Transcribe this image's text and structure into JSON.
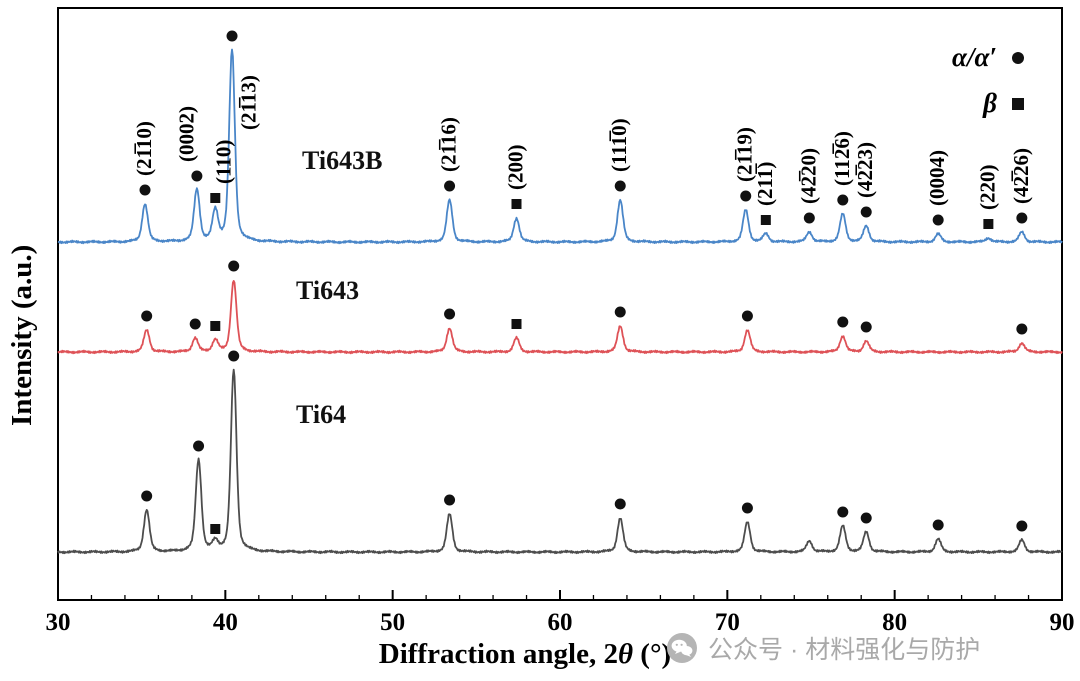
{
  "watermark": {
    "text": "公众号 · 材料强化与防护"
  },
  "chart_data": {
    "type": "line",
    "title": "",
    "xlabel": {
      "prefix": "Diffraction angle, 2",
      "theta": "θ",
      "suffix": " (°)"
    },
    "ylabel": "Intensity (a.u.)",
    "xlim": [
      30,
      90
    ],
    "x_ticks": [
      30,
      40,
      50,
      60,
      70,
      80,
      90
    ],
    "x_minor_tick_step": 2,
    "grid": false,
    "legend_position": "top-right",
    "legend": [
      {
        "label": "α/α′",
        "marker": "circle",
        "phase": "alpha"
      },
      {
        "label": "β",
        "marker": "square",
        "phase": "beta"
      }
    ],
    "marker_color": "#111111",
    "peak_labels": [
      {
        "hkl": "(21̅10)",
        "phase": "α",
        "x": 35.2,
        "dx": 0
      },
      {
        "hkl": "(0002)",
        "phase": "α",
        "x": 38.3,
        "dx": -0.55
      },
      {
        "hkl": "(110)",
        "phase": "β",
        "x": 39.4,
        "dx": 0.55
      },
      {
        "hkl": "(21̅13)",
        "phase": "α",
        "x": 40.4,
        "dx": 1.05
      },
      {
        "hkl": "(21̅16)",
        "phase": "α",
        "x": 53.4,
        "dx": 0
      },
      {
        "hkl": "(200)",
        "phase": "β",
        "x": 57.4,
        "dx": 0
      },
      {
        "hkl": "(111̅0)",
        "phase": "α",
        "x": 63.6,
        "dx": 0
      },
      {
        "hkl": "(21̅19)",
        "phase": "α",
        "x": 71.1,
        "dx": 0
      },
      {
        "hkl": "(211̅)",
        "phase": "β",
        "x": 72.3,
        "dx": 0
      },
      {
        "hkl": "(42̅20)",
        "phase": "α",
        "x": 74.9,
        "dx": 0
      },
      {
        "hkl": "(112̅6)",
        "phase": "α",
        "x": 76.9,
        "dx": 0
      },
      {
        "hkl": "(42̅23)",
        "phase": "α",
        "x": 78.3,
        "dx": 0
      },
      {
        "hkl": "(0004)",
        "phase": "α",
        "x": 82.6,
        "dx": 0
      },
      {
        "hkl": "(220)",
        "phase": "β",
        "x": 85.6,
        "dx": 0
      },
      {
        "hkl": "(42̅26)",
        "phase": "α",
        "x": 87.6,
        "dx": 0
      }
    ],
    "series": [
      {
        "name": "Ti643B",
        "color": "#4a86c8",
        "baseline": 358,
        "peaks": [
          {
            "x": 35.2,
            "i": 38,
            "m": "circle"
          },
          {
            "x": 38.3,
            "i": 52,
            "m": "circle"
          },
          {
            "x": 39.4,
            "i": 30,
            "m": "square"
          },
          {
            "x": 40.4,
            "i": 192,
            "m": "circle"
          },
          {
            "x": 53.4,
            "i": 42,
            "m": "circle"
          },
          {
            "x": 57.4,
            "i": 24,
            "m": "square"
          },
          {
            "x": 63.6,
            "i": 42,
            "m": "circle"
          },
          {
            "x": 71.1,
            "i": 32,
            "m": "circle"
          },
          {
            "x": 72.3,
            "i": 8,
            "m": "square"
          },
          {
            "x": 74.9,
            "i": 10,
            "m": "circle"
          },
          {
            "x": 76.9,
            "i": 28,
            "m": "circle"
          },
          {
            "x": 78.3,
            "i": 16,
            "m": "circle"
          },
          {
            "x": 82.6,
            "i": 8,
            "m": "circle"
          },
          {
            "x": 85.6,
            "i": 4,
            "m": "square"
          },
          {
            "x": 87.6,
            "i": 10,
            "m": "circle"
          }
        ]
      },
      {
        "name": "Ti643",
        "color": "#de5257",
        "baseline": 248,
        "peaks": [
          {
            "x": 35.3,
            "i": 22,
            "m": "circle"
          },
          {
            "x": 38.2,
            "i": 14,
            "m": "circle"
          },
          {
            "x": 39.4,
            "i": 12,
            "m": "square"
          },
          {
            "x": 40.5,
            "i": 72,
            "m": "circle"
          },
          {
            "x": 53.4,
            "i": 24,
            "m": "circle"
          },
          {
            "x": 57.4,
            "i": 14,
            "m": "square"
          },
          {
            "x": 63.6,
            "i": 26,
            "m": "circle"
          },
          {
            "x": 71.2,
            "i": 22,
            "m": "circle"
          },
          {
            "x": 76.9,
            "i": 16,
            "m": "circle"
          },
          {
            "x": 78.3,
            "i": 11,
            "m": "circle"
          },
          {
            "x": 87.6,
            "i": 9,
            "m": "circle"
          }
        ]
      },
      {
        "name": "Ti64",
        "color": "#4d4d4d",
        "baseline": 48,
        "peaks": [
          {
            "x": 35.3,
            "i": 42,
            "m": "circle"
          },
          {
            "x": 38.4,
            "i": 92,
            "m": "circle"
          },
          {
            "x": 39.4,
            "i": 9,
            "m": "square"
          },
          {
            "x": 40.5,
            "i": 182,
            "m": "circle"
          },
          {
            "x": 53.4,
            "i": 38,
            "m": "circle"
          },
          {
            "x": 63.6,
            "i": 34,
            "m": "circle"
          },
          {
            "x": 71.2,
            "i": 30,
            "m": "circle"
          },
          {
            "x": 74.9,
            "i": 11,
            "m": null
          },
          {
            "x": 76.9,
            "i": 26,
            "m": "circle"
          },
          {
            "x": 78.3,
            "i": 20,
            "m": "circle"
          },
          {
            "x": 82.6,
            "i": 13,
            "m": "circle"
          },
          {
            "x": 87.6,
            "i": 12,
            "m": "circle"
          }
        ]
      }
    ]
  }
}
